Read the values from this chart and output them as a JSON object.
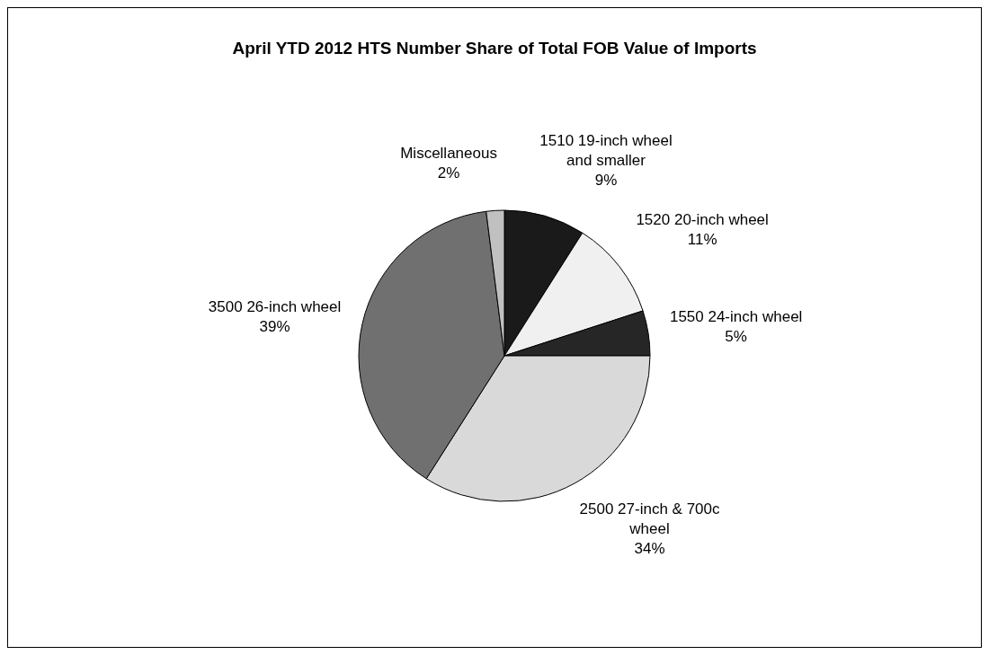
{
  "chart_data": {
    "type": "pie",
    "title": "April YTD 2012 HTS Number Share of Total FOB Value of Imports",
    "categories": [
      "1510 19-inch wheel and smaller",
      "1520 20-inch wheel",
      "1550 24-inch wheel",
      "2500 27-inch & 700c wheel",
      "3500 26-inch wheel",
      "Miscellaneous"
    ],
    "values": [
      9,
      11,
      5,
      34,
      39,
      2
    ],
    "value_labels": [
      "9%",
      "11%",
      "5%",
      "34%",
      "39%",
      "2%"
    ],
    "colors": [
      "#1a1a1a",
      "#f0f0f0",
      "#262626",
      "#d9d9d9",
      "#707070",
      "#c0c0c0"
    ],
    "legend": false
  }
}
